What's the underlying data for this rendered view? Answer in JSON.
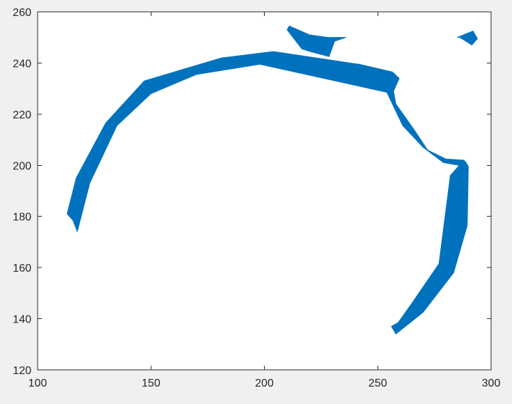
{
  "chart_data": {
    "type": "area",
    "title": "",
    "xlabel": "",
    "ylabel": "",
    "xlim": [
      100,
      300
    ],
    "ylim": [
      120,
      260
    ],
    "xticks": [
      100,
      150,
      200,
      250,
      300
    ],
    "yticks": [
      120,
      140,
      160,
      180,
      200,
      220,
      240,
      260
    ],
    "grid": false,
    "legend": "none",
    "fill_color": "#0072bd",
    "axes_background": "#ffffff",
    "figure_background": "#f0f0f0",
    "series": [
      {
        "shape": "main-arc-band",
        "points": [
          [
            113,
            181
          ],
          [
            115.5,
            178.5
          ],
          [
            117.5,
            174
          ],
          [
            123,
            193
          ],
          [
            135,
            215.5
          ],
          [
            150,
            228
          ],
          [
            170,
            235.5
          ],
          [
            198,
            239.5
          ],
          [
            254,
            228.5
          ],
          [
            261,
            215.5
          ],
          [
            270,
            207
          ],
          [
            279,
            201
          ],
          [
            286,
            200
          ],
          [
            288,
            201
          ]
        ],
        "points_back": [
          [
            288,
            202
          ],
          [
            280,
            202.5
          ],
          [
            272,
            206
          ],
          [
            266,
            214
          ],
          [
            262,
            219
          ],
          [
            258,
            224
          ],
          [
            257,
            229
          ],
          [
            259.5,
            234
          ],
          [
            256.5,
            236.5
          ],
          [
            242,
            239.5
          ],
          [
            204,
            244.5
          ],
          [
            181,
            242
          ],
          [
            147,
            233
          ],
          [
            130,
            216.5
          ],
          [
            117,
            195
          ]
        ]
      },
      {
        "shape": "right-descending-band",
        "points": [
          [
            282,
            196
          ],
          [
            288,
            202
          ],
          [
            289,
            201
          ],
          [
            290,
            199.5
          ],
          [
            289.5,
            176.5
          ],
          [
            283.5,
            158
          ],
          [
            270,
            142.5
          ],
          [
            258,
            134
          ],
          [
            256,
            137
          ],
          [
            259,
            138.5
          ],
          [
            265,
            146
          ],
          [
            277,
            161.5
          ]
        ]
      },
      {
        "shape": "top-small-piece",
        "points": [
          [
            211,
            254.5
          ],
          [
            220,
            251
          ],
          [
            228,
            250
          ],
          [
            236,
            250
          ],
          [
            231,
            248.5
          ],
          [
            228.5,
            242.5
          ],
          [
            220,
            244.5
          ],
          [
            216.5,
            245.5
          ],
          [
            210,
            253
          ]
        ]
      },
      {
        "shape": "top-right-sliver",
        "points": [
          [
            285,
            250
          ],
          [
            292,
            252.5
          ],
          [
            294,
            249.5
          ],
          [
            291.5,
            247
          ],
          [
            288,
            249
          ],
          [
            286,
            250
          ]
        ]
      }
    ]
  }
}
